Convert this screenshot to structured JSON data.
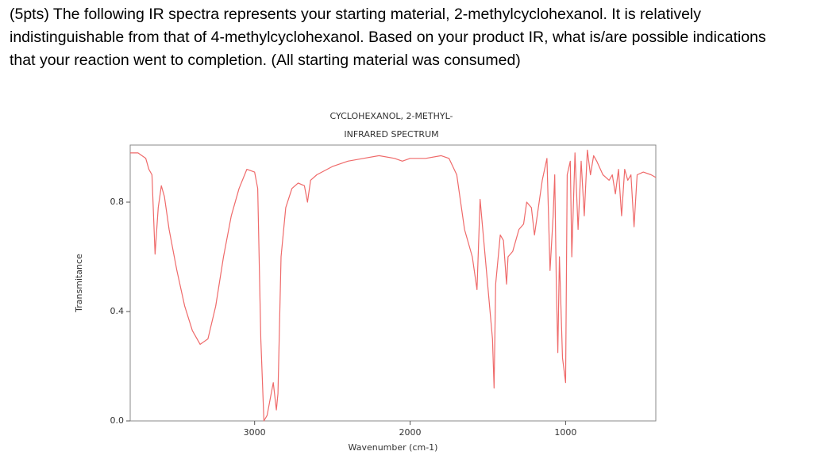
{
  "question": "(5pts) The following IR spectra represents your starting material, 2-methylcyclohexanol.  It is relatively indistinguishable from that of 4-methylcyclohexanol.  Based on your product IR, what is/are possible indications that your reaction went to completion. (All starting material was consumed)",
  "chart_data": {
    "type": "line",
    "title": "CYCLOHEXANOL, 2-METHYL-",
    "subtitle": "INFRARED SPECTRUM",
    "x_label": "Wavenumber (cm-1)",
    "y_label": "Transmitance",
    "xlim": [
      3800,
      420
    ],
    "ylim": [
      0,
      1.0
    ],
    "xticks": [
      3000,
      2000,
      1000
    ],
    "yticks": [
      {
        "value": 0,
        "label": "0.0"
      },
      0.4,
      0.8
    ],
    "series": [
      {
        "color": "#ef6a6a",
        "x": [
          3800,
          3750,
          3700,
          3680,
          3660,
          3640,
          3620,
          3600,
          3580,
          3550,
          3500,
          3450,
          3400,
          3350,
          3300,
          3250,
          3200,
          3150,
          3100,
          3050,
          3000,
          2980,
          2960,
          2940,
          2920,
          2900,
          2880,
          2860,
          2850,
          2830,
          2800,
          2760,
          2720,
          2680,
          2660,
          2640,
          2600,
          2500,
          2400,
          2300,
          2200,
          2100,
          2050,
          2000,
          1900,
          1800,
          1750,
          1700,
          1650,
          1600,
          1570,
          1550,
          1470,
          1460,
          1450,
          1420,
          1400,
          1380,
          1370,
          1340,
          1300,
          1270,
          1250,
          1220,
          1200,
          1150,
          1120,
          1100,
          1080,
          1070,
          1060,
          1050,
          1040,
          1020,
          1000,
          990,
          970,
          960,
          940,
          920,
          900,
          880,
          860,
          840,
          820,
          800,
          760,
          720,
          700,
          680,
          660,
          640,
          620,
          600,
          580,
          560,
          540,
          500,
          450,
          420
        ],
        "values": [
          0.98,
          0.98,
          0.96,
          0.92,
          0.9,
          0.61,
          0.78,
          0.86,
          0.82,
          0.7,
          0.55,
          0.42,
          0.33,
          0.28,
          0.3,
          0.42,
          0.6,
          0.75,
          0.85,
          0.92,
          0.91,
          0.85,
          0.3,
          0.0,
          0.02,
          0.08,
          0.14,
          0.04,
          0.1,
          0.6,
          0.78,
          0.85,
          0.87,
          0.86,
          0.8,
          0.88,
          0.9,
          0.93,
          0.95,
          0.96,
          0.97,
          0.96,
          0.95,
          0.96,
          0.96,
          0.97,
          0.96,
          0.9,
          0.7,
          0.6,
          0.48,
          0.81,
          0.3,
          0.12,
          0.5,
          0.68,
          0.66,
          0.5,
          0.6,
          0.62,
          0.7,
          0.72,
          0.8,
          0.78,
          0.68,
          0.88,
          0.96,
          0.55,
          0.75,
          0.9,
          0.5,
          0.25,
          0.6,
          0.23,
          0.14,
          0.9,
          0.95,
          0.6,
          0.98,
          0.7,
          0.95,
          0.75,
          0.99,
          0.9,
          0.97,
          0.95,
          0.9,
          0.88,
          0.9,
          0.83,
          0.92,
          0.75,
          0.92,
          0.88,
          0.9,
          0.71,
          0.9,
          0.91,
          0.9,
          0.89
        ]
      }
    ]
  }
}
